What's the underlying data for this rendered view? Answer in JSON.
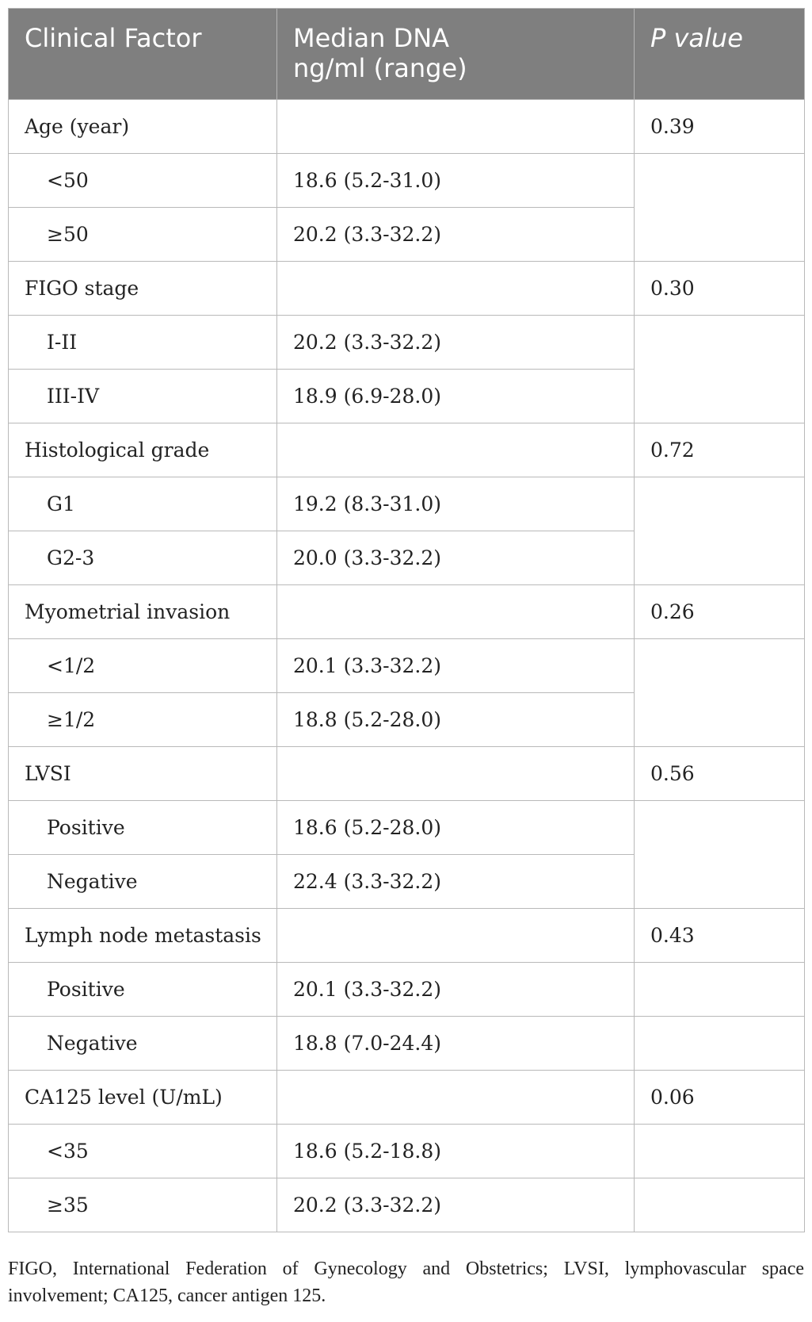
{
  "table": {
    "headers": {
      "factor": "Clinical Factor",
      "median_line1": "Median DNA",
      "median_line2": "ng/ml (range)",
      "pvalue": "P value"
    },
    "groups": [
      {
        "factor": "Age (year)",
        "p": "0.39",
        "rows": [
          {
            "label": "<50",
            "value": "18.6 (5.2-31.0)"
          },
          {
            "label": "≥50",
            "value": "20.2 (3.3-32.2)"
          }
        ]
      },
      {
        "factor": "FIGO stage",
        "p": "0.30",
        "rows": [
          {
            "label": "I-II",
            "value": "20.2 (3.3-32.2)"
          },
          {
            "label": "III-IV",
            "value": "18.9 (6.9-28.0)"
          }
        ]
      },
      {
        "factor": "Histological grade",
        "p": "0.72",
        "rows": [
          {
            "label": "G1",
            "value": "19.2 (8.3-31.0)"
          },
          {
            "label": "G2-3",
            "value": "20.0 (3.3-32.2)"
          }
        ]
      },
      {
        "factor": "Myometrial invasion",
        "p": "0.26",
        "rows": [
          {
            "label": "<1/2",
            "value": "20.1 (3.3-32.2)"
          },
          {
            "label": "≥1/2",
            "value": "18.8 (5.2-28.0)"
          }
        ]
      },
      {
        "factor": "LVSI",
        "p": "0.56",
        "rows": [
          {
            "label": "Positive",
            "value": "18.6 (5.2-28.0)"
          },
          {
            "label": "Negative",
            "value": "22.4 (3.3-32.2)"
          }
        ]
      },
      {
        "factor": "Lymph node metastasis",
        "p": "0.43",
        "rows": [
          {
            "label": "Positive",
            "value": "20.1 (3.3-32.2)"
          },
          {
            "label": "Negative",
            "value": "18.8 (7.0-24.4)"
          }
        ]
      },
      {
        "factor": "CA125 level (U/mL)",
        "p": "0.06",
        "rows": [
          {
            "label": "<35",
            "value": "18.6 (5.2-18.8)"
          },
          {
            "label": "≥35",
            "value": "20.2 (3.3-32.2)"
          }
        ]
      }
    ]
  },
  "footnote": "FIGO, International Federation of Gynecology and Obstetrics; LVSI, lymphovascular space involvement; CA125, cancer antigen 125."
}
